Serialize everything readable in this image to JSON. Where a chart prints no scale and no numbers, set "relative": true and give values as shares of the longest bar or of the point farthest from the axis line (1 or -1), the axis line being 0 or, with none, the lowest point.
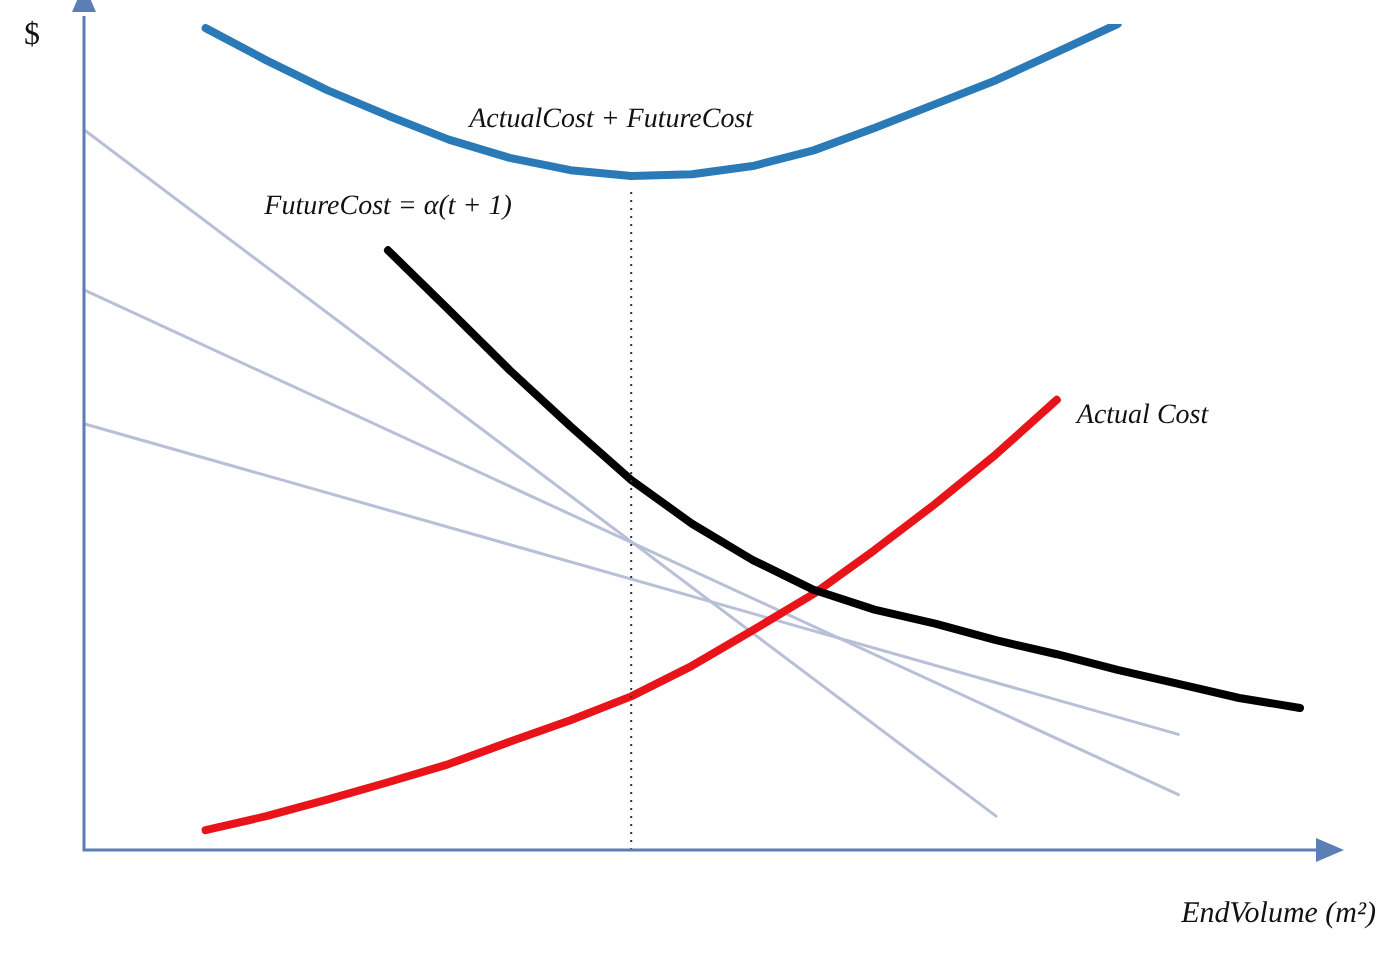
{
  "chart_data": {
    "type": "line",
    "relative": true,
    "xlabel": "EndVolume (m²)",
    "ylabel": "$",
    "categories": [
      null,
      null,
      null,
      null,
      null,
      null,
      null,
      null,
      null,
      null,
      null,
      null,
      null,
      null,
      null,
      null,
      null,
      null,
      null,
      null,
      null
    ],
    "tick_labels": false,
    "grid": false,
    "legend": false,
    "marker": "none",
    "series": [
      {
        "name": "ActualCost + FutureCost",
        "color": "#2a7ab8",
        "values": [
          null,
          null,
          0.995,
          0.956,
          0.92,
          0.889,
          0.86,
          0.838,
          0.823,
          0.816,
          0.818,
          0.828,
          0.847,
          0.874,
          0.903,
          0.932,
          0.966,
          1.0,
          null,
          null,
          null
        ]
      },
      {
        "name": "FutureCost = α(t + 1)",
        "color": "#000000",
        "values": [
          null,
          null,
          null,
          null,
          null,
          0.726,
          0.654,
          0.581,
          0.513,
          0.448,
          0.395,
          0.351,
          0.315,
          0.291,
          0.274,
          0.254,
          0.237,
          0.218,
          0.201,
          0.184,
          0.172
        ]
      },
      {
        "name": "Actual Cost",
        "color": "#e8141a",
        "values": [
          null,
          null,
          0.024,
          0.041,
          0.061,
          0.082,
          0.104,
          0.131,
          0.157,
          0.186,
          0.223,
          0.266,
          0.31,
          0.363,
          0.419,
          0.479,
          0.545,
          null,
          null,
          null,
          null
        ]
      },
      {
        "color": "#b8c0d8",
        "values": [
          0.872,
          null,
          null,
          null,
          null,
          null,
          null,
          null,
          null,
          null,
          null,
          null,
          null,
          null,
          null,
          0.041,
          null,
          null,
          null,
          null,
          null
        ]
      },
      {
        "color": "#b8c0d8",
        "values": [
          0.678,
          null,
          null,
          null,
          null,
          null,
          null,
          null,
          null,
          null,
          null,
          null,
          null,
          null,
          null,
          null,
          null,
          null,
          0.067,
          null,
          null
        ]
      },
      {
        "color": "#b8c0d8",
        "values": [
          0.516,
          null,
          null,
          null,
          null,
          null,
          null,
          null,
          null,
          null,
          null,
          null,
          null,
          null,
          null,
          null,
          null,
          null,
          0.14,
          null,
          null
        ]
      }
    ]
  }
}
